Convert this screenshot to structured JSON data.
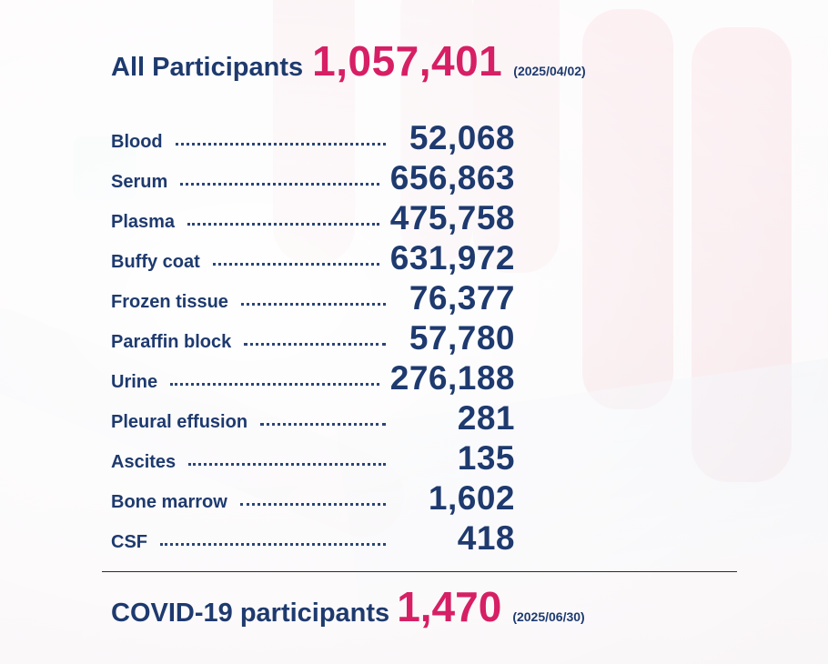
{
  "summary": {
    "label": "All Participants",
    "value": "1,057,401",
    "date": "(2025/04/02)"
  },
  "samples": [
    {
      "label": "Blood",
      "value": "52,068"
    },
    {
      "label": "Serum",
      "value": "656,863"
    },
    {
      "label": "Plasma",
      "value": "475,758"
    },
    {
      "label": "Buffy coat",
      "value": "631,972"
    },
    {
      "label": "Frozen tissue",
      "value": "76,377"
    },
    {
      "label": "Paraffin block",
      "value": "57,780"
    },
    {
      "label": "Urine",
      "value": "276,188"
    },
    {
      "label": "Pleural effusion",
      "value": "281"
    },
    {
      "label": "Ascites",
      "value": "135"
    },
    {
      "label": "Bone marrow",
      "value": "1,602"
    },
    {
      "label": "CSF",
      "value": "418"
    }
  ],
  "covid": {
    "label": "COVID-19 participants",
    "value": "1,470",
    "date": "(2025/06/30)"
  },
  "colors": {
    "text_primary": "#1e3a6e",
    "accent": "#d61f64",
    "divider": "#2b2b2b"
  }
}
